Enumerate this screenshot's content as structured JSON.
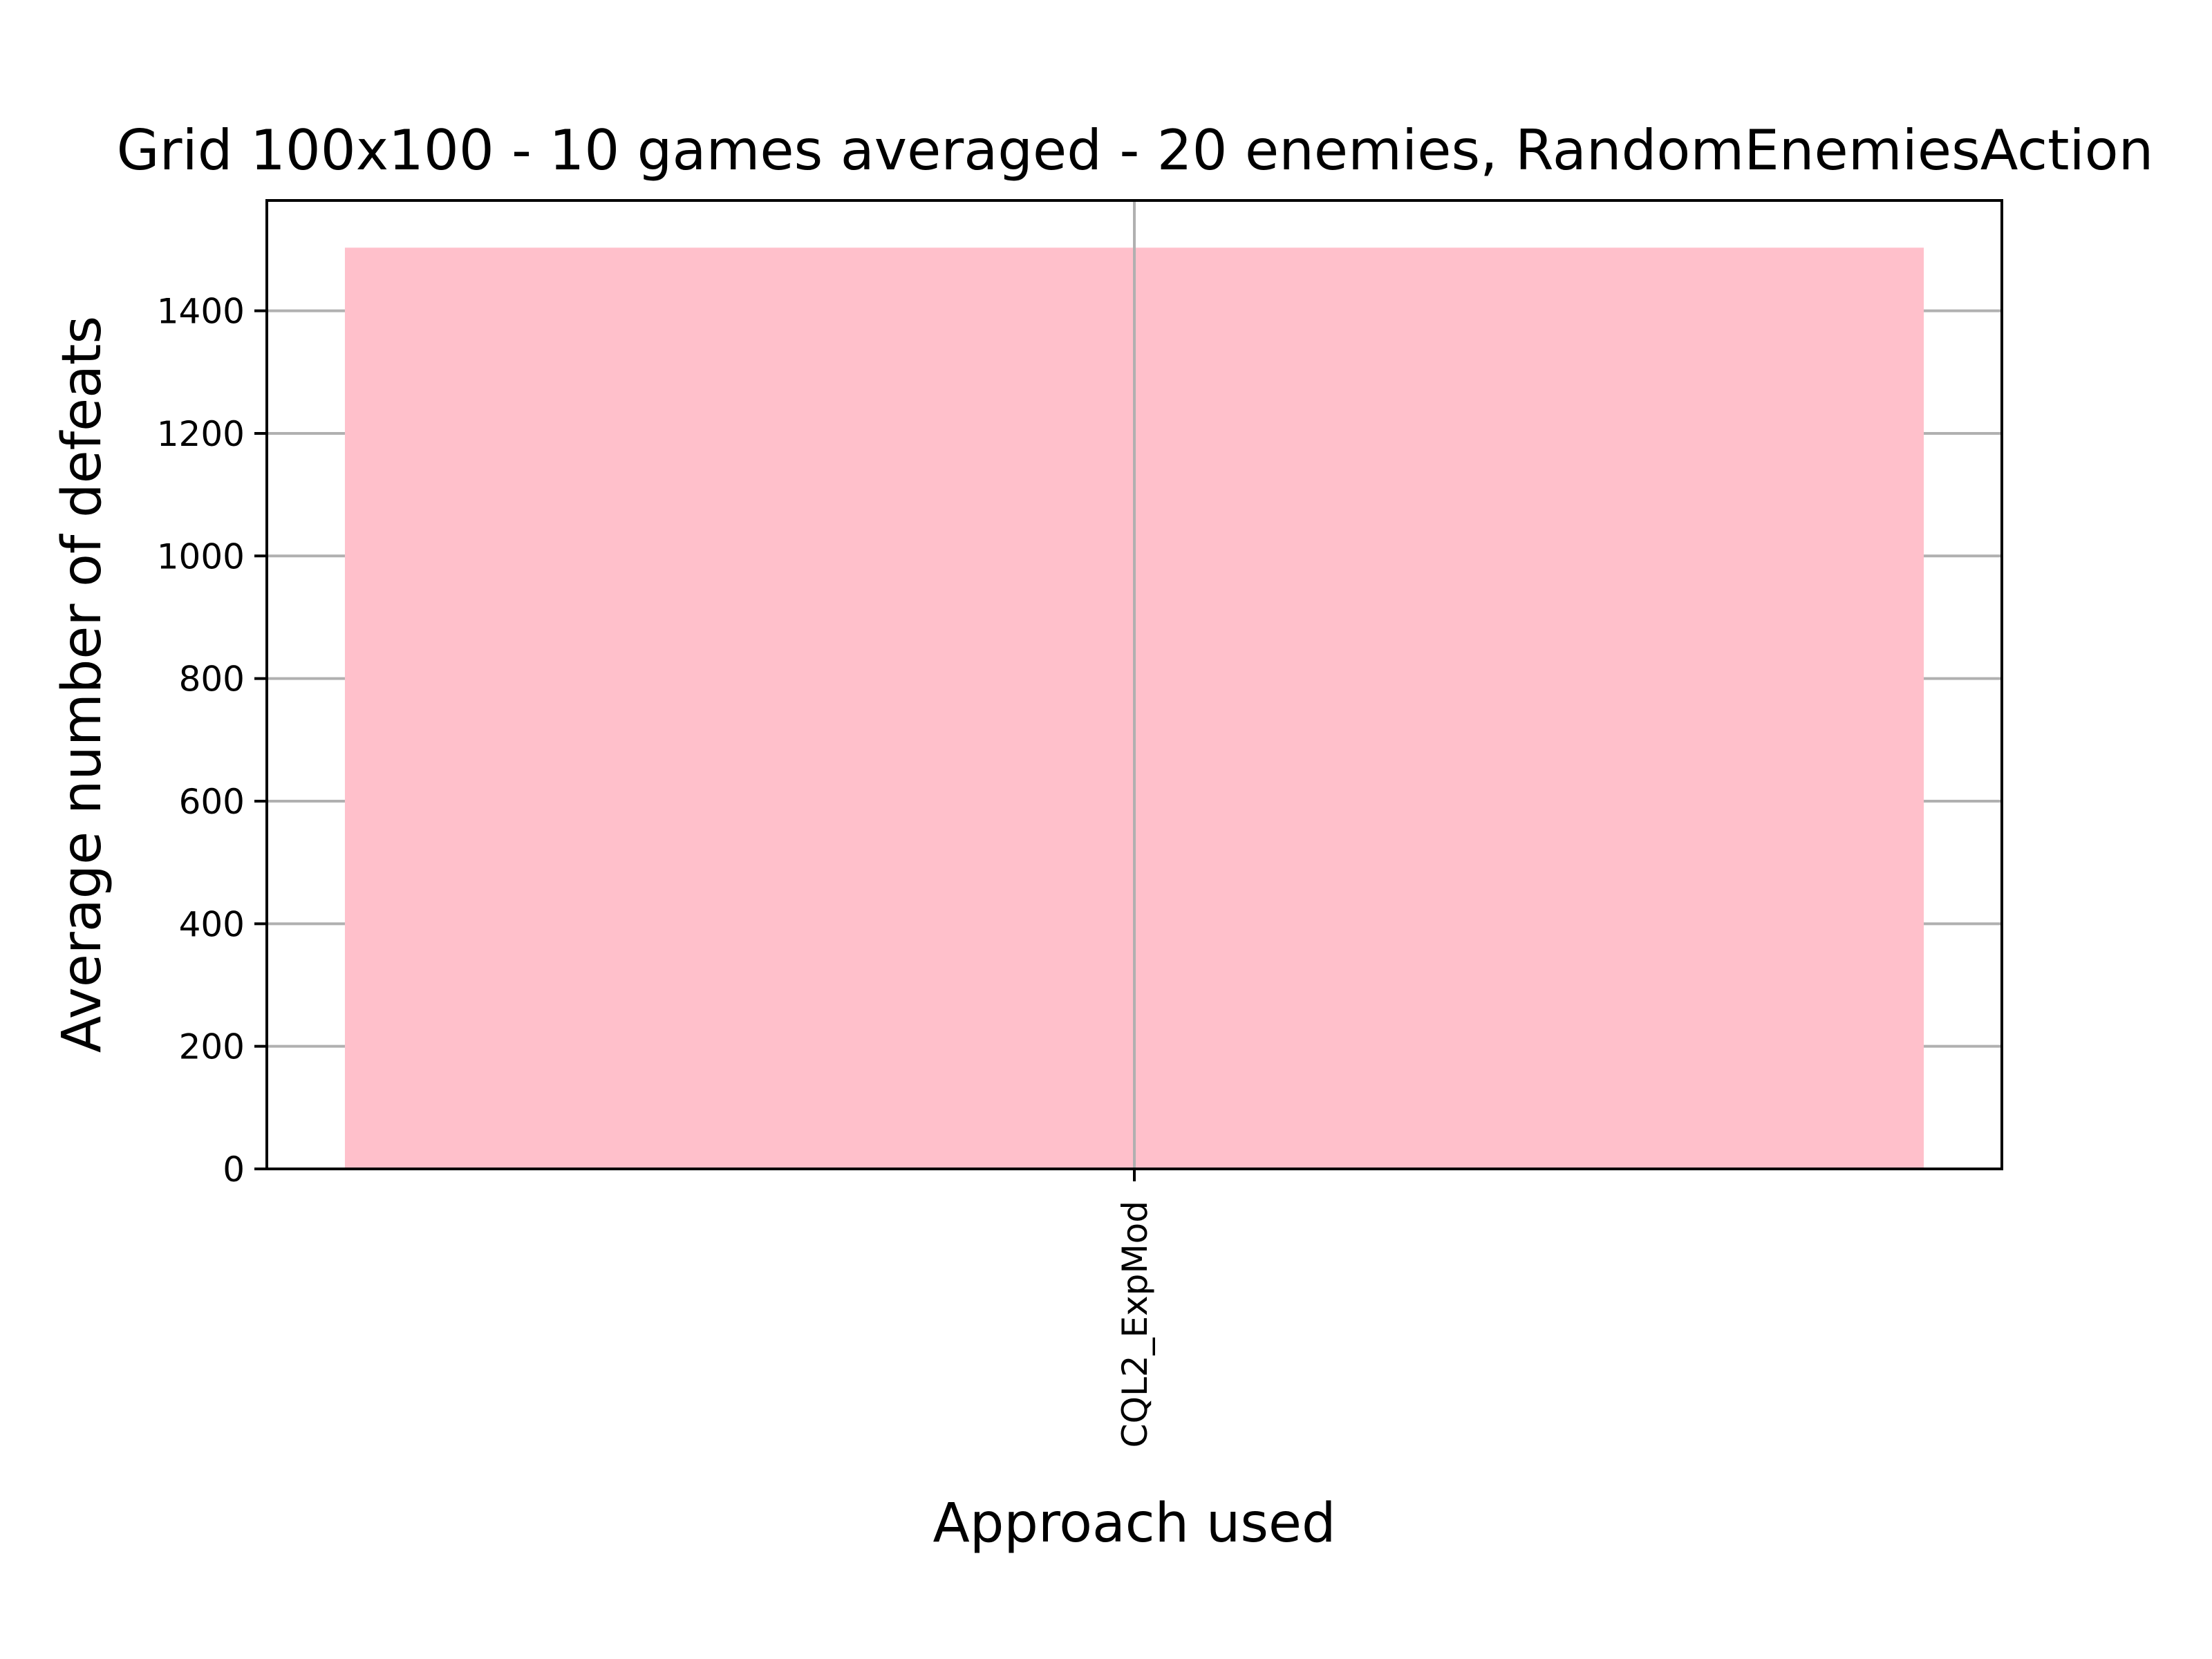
{
  "chart_data": {
    "type": "bar",
    "title": "Grid 100x100 - 10 games averaged - 20 enemies, RandomEnemiesAction",
    "xlabel": "Approach used",
    "ylabel": "Average number of defeats",
    "categories": [
      "CQL2_ExpMod"
    ],
    "values": [
      1503
    ],
    "ylim": [
      0,
      1580
    ],
    "yticks": [
      0,
      200,
      400,
      600,
      800,
      1000,
      1200,
      1400
    ],
    "grid": true,
    "bar_color": "#ffc0cb",
    "legend": false
  }
}
